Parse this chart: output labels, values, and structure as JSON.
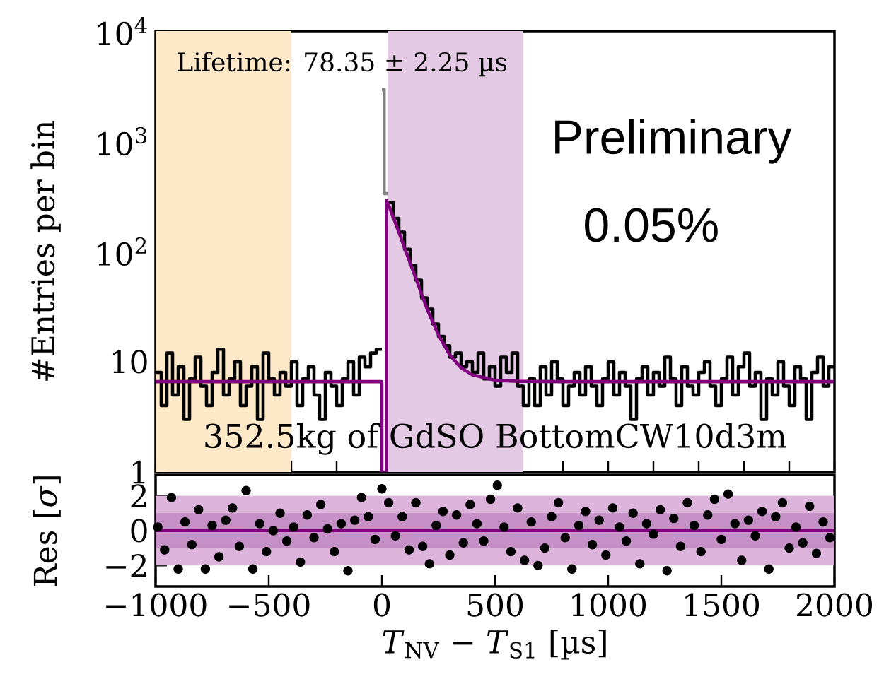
{
  "chart_data": [
    {
      "type": "histogram",
      "ylabel": "#Entries per bin",
      "xlim": [
        -1000,
        2000
      ],
      "ylim": [
        1,
        10000
      ],
      "log": true,
      "tick_labels": "y",
      "yticks": [
        {
          "value": 1,
          "label": "1"
        },
        {
          "value": 10,
          "label": "10"
        },
        {
          "value": 100,
          "label": "10$^{2}$"
        },
        {
          "value": 1000,
          "label": "10$^{3}$"
        },
        {
          "value": 10000,
          "label": "10$^{4}$"
        }
      ],
      "bands": [
        {
          "axis": "x",
          "from": -1000,
          "to": -400,
          "color": "#fde8c8"
        },
        {
          "axis": "x",
          "from": 25,
          "to": 625,
          "color": "#e3c9e3"
        }
      ],
      "series": [
        {
          "color": "#808080",
          "bins": [
            0,
            10,
            25
          ],
          "values": [
            2950,
            335
          ]
        },
        {
          "color": "#000000",
          "bins": [
            -1000,
            -975,
            -950,
            -925,
            -900,
            -875,
            -850,
            -825,
            -800,
            -775,
            -750,
            -725,
            -700,
            -675,
            -650,
            -625,
            -600,
            -575,
            -550,
            -525,
            -500,
            -475,
            -450,
            -425,
            -400,
            -375,
            -350,
            -325,
            -300,
            -275,
            -250,
            -225,
            -200,
            -175,
            -150,
            -125,
            -100,
            -75,
            -50,
            -25,
            0
          ],
          "values": [
            8,
            4,
            12,
            5,
            9,
            3,
            7,
            11,
            6,
            4,
            8,
            13,
            5,
            7,
            10,
            4,
            6,
            9,
            3,
            12,
            7,
            5,
            8,
            6,
            10,
            4,
            7,
            9,
            5,
            3,
            8,
            6,
            4,
            7,
            10,
            5,
            11,
            9,
            12,
            13
          ]
        },
        {
          "color": "#000000",
          "bins": [
            25,
            50,
            75,
            100,
            125,
            150,
            175,
            200,
            225,
            250,
            275,
            300,
            325,
            350,
            375,
            400,
            425,
            450,
            475,
            500,
            525,
            550,
            575,
            600,
            625,
            650,
            675,
            700,
            725,
            750,
            775,
            800,
            825,
            850,
            875,
            900,
            925,
            950,
            975,
            1000,
            1025,
            1050,
            1075,
            1100,
            1125,
            1150,
            1175,
            1200,
            1225,
            1250,
            1275,
            1300,
            1325,
            1350,
            1375,
            1400,
            1425,
            1450,
            1475,
            1500,
            1525,
            1550,
            1575,
            1600,
            1625,
            1650,
            1675,
            1700,
            1725,
            1750,
            1775,
            1800,
            1825,
            1850,
            1875,
            1900,
            1925,
            1950,
            1975,
            2000
          ],
          "values": [
            280,
            200,
            150,
            105,
            75,
            55,
            38,
            30,
            22,
            17,
            14,
            11,
            12,
            9,
            10,
            8,
            12,
            7,
            9,
            6,
            11,
            8,
            12,
            6,
            4,
            7,
            4,
            9,
            5,
            10,
            7,
            4,
            6,
            8,
            5,
            9,
            6,
            4,
            7,
            10,
            5,
            8,
            6,
            3,
            7,
            9,
            5,
            8,
            6,
            11,
            7,
            4,
            9,
            6,
            5,
            8,
            10,
            6,
            4,
            7,
            11,
            5,
            9,
            12,
            6,
            8,
            3,
            7,
            5,
            10,
            6,
            4,
            9,
            7,
            3,
            8,
            11,
            6,
            9
          ]
        },
        {
          "type": "line",
          "color": "#800080",
          "x": [
            -1000,
            0,
            0,
            20,
            20,
            25,
            50,
            75,
            100,
            150,
            200,
            250,
            300,
            350,
            400,
            500,
            600,
            800,
            2000
          ],
          "values": [
            6.6,
            6.6,
            1,
            1,
            290,
            280,
            205,
            150,
            108,
            57,
            30,
            17.5,
            11.5,
            8.8,
            7.6,
            6.8,
            6.65,
            6.6,
            6.6
          ]
        }
      ],
      "annotations": [
        "Lifetime: 78.35 ± 2.25 µs",
        "Preliminary",
        "0.05%",
        "352.5kg of GdSO BottomCW10d3m"
      ]
    },
    {
      "type": "scatter",
      "xlabel": "*T*$_{NV}$ − *T*$_{S1}$ [µs]",
      "ylabel": "Res [*σ*]",
      "xlim": [
        -1000,
        2000
      ],
      "ylim": [
        -3.2,
        3.2
      ],
      "xticks": [
        {
          "value": -1000,
          "label": "−1000"
        },
        {
          "value": -500,
          "label": "−500"
        },
        0,
        500,
        1000,
        1500,
        2000
      ],
      "yticks": [
        {
          "value": -2,
          "label": "−2"
        },
        0,
        2
      ],
      "bands": [
        {
          "axis": "y",
          "from": -2,
          "to": 2,
          "color": "#dcb4dc"
        },
        {
          "axis": "y",
          "from": -1,
          "to": 1,
          "color": "#c590c5"
        }
      ],
      "ref_lines": [
        {
          "axis": "y",
          "value": 0,
          "color": "#800080"
        }
      ],
      "series": [
        {
          "color": "#000000",
          "x": [
            -990,
            -960,
            -930,
            -900,
            -870,
            -840,
            -810,
            -780,
            -750,
            -720,
            -690,
            -660,
            -630,
            -600,
            -570,
            -540,
            -510,
            -480,
            -450,
            -420,
            -390,
            -360,
            -330,
            -300,
            -270,
            -240,
            -210,
            -180,
            -150,
            -120,
            -90,
            -60,
            -30,
            0,
            30,
            60,
            90,
            120,
            150,
            180,
            210,
            240,
            270,
            300,
            330,
            360,
            390,
            420,
            450,
            480,
            510,
            540,
            570,
            600,
            630,
            660,
            690,
            720,
            750,
            780,
            810,
            840,
            870,
            900,
            930,
            960,
            990,
            1020,
            1050,
            1080,
            1110,
            1140,
            1170,
            1200,
            1230,
            1260,
            1290,
            1320,
            1350,
            1380,
            1410,
            1440,
            1470,
            1500,
            1530,
            1560,
            1590,
            1620,
            1650,
            1680,
            1710,
            1740,
            1770,
            1800,
            1830,
            1860,
            1890,
            1920,
            1950,
            1980
          ],
          "values": [
            0.2,
            -1.1,
            1.9,
            -2.2,
            0.5,
            -0.8,
            1.2,
            -2.2,
            0.3,
            -1.5,
            0.6,
            1.3,
            -0.9,
            2.3,
            -2.2,
            0.4,
            -1.2,
            0.0,
            1.0,
            -0.6,
            0.2,
            -1.8,
            0.9,
            -0.4,
            1.5,
            0.1,
            -1.2,
            0.4,
            -2.3,
            0.6,
            1.9,
            0.8,
            -0.5,
            2.4,
            1.6,
            -0.3,
            0.8,
            -1.1,
            1.6,
            -0.9,
            -1.9,
            0.3,
            1.1,
            -1.4,
            0.9,
            -0.7,
            1.5,
            0.4,
            -0.6,
            1.8,
            2.6,
            0.2,
            -1.2,
            1.3,
            -1.7,
            0.5,
            -2.0,
            -1.0,
            0.8,
            1.6,
            -0.4,
            -2.2,
            0.3,
            1.1,
            -0.8,
            0.6,
            -1.4,
            1.3,
            0.2,
            -0.6,
            1.0,
            -1.9,
            0.4,
            -0.2,
            1.2,
            -2.3,
            0.7,
            -0.9,
            1.6,
            0.3,
            -1.2,
            0.9,
            1.8,
            -0.5,
            2.1,
            0.4,
            -1.7,
            0.6,
            -0.3,
            1.1,
            -2.2,
            0.8,
            1.6,
            -1.0,
            0.2,
            -0.7,
            1.4,
            -1.3,
            0.5,
            -0.4
          ]
        }
      ]
    }
  ]
}
